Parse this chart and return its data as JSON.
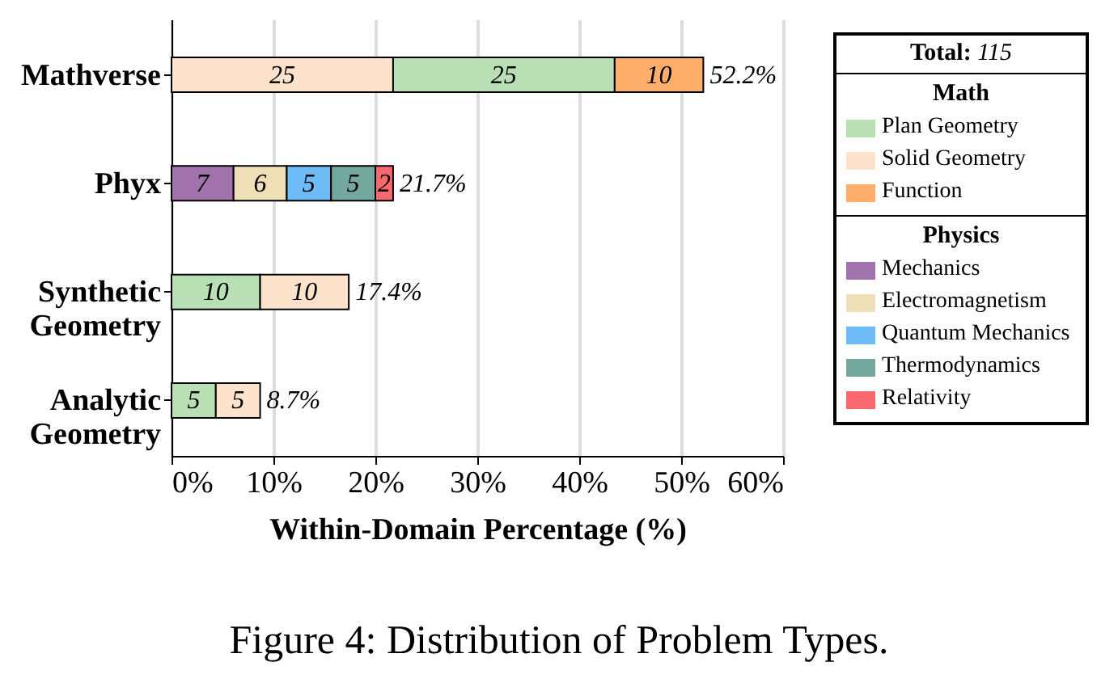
{
  "chart_data": {
    "type": "bar",
    "orientation": "horizontal",
    "stacked": true,
    "title": "Figure 4: Distribution of Problem Types.",
    "xlabel": "Within-Domain Percentage (%)",
    "legend_title": "Total: 115",
    "annotations": [
      "Math",
      "Physics",
      "25",
      "25",
      "10",
      "7",
      "6",
      "5",
      "5",
      "2",
      "10",
      "10",
      "5",
      "5"
    ],
    "categories": [
      "Mathverse",
      "Phyx",
      "Synthetic Geometry",
      "Analytic Geometry"
    ],
    "series": [
      {
        "color": "#fde2cc",
        "values": [
          21.739,
          null,
          null,
          null
        ]
      },
      {
        "name": "Plan Geometry",
        "color": "#b8e0b4",
        "values": [
          21.739,
          null,
          8.696,
          4.348
        ]
      },
      {
        "name": "Solid Geometry",
        "color": "#fde2cc",
        "values": [
          null,
          null,
          8.696,
          4.348
        ]
      },
      {
        "name": "Function",
        "color": "#fdae6b",
        "values": [
          8.696,
          null,
          null,
          null
        ]
      },
      {
        "name": "Mechanics",
        "color": "#a272ac",
        "values": [
          null,
          6.087,
          null,
          null
        ]
      },
      {
        "name": "Electromagnetism",
        "color": "#efe0b8",
        "values": [
          null,
          5.217,
          null,
          null
        ]
      },
      {
        "name": "Quantum Mechanics",
        "color": "#6ebcf7",
        "values": [
          null,
          4.348,
          null,
          null
        ]
      },
      {
        "name": "Thermodynamics",
        "color": "#72a89e",
        "values": [
          null,
          4.348,
          null,
          null
        ]
      },
      {
        "name": "Relativity",
        "color": "#f7696c",
        "values": [
          null,
          1.739,
          null,
          null
        ]
      }
    ],
    "totals": [
      "52.2%",
      "21.7%",
      "17.4%",
      "8.7%"
    ],
    "xlim": [
      0,
      60
    ],
    "xticks": [
      {
        "value": 0,
        "label": "0%"
      },
      {
        "value": 10,
        "label": "10%"
      },
      {
        "value": 20,
        "label": "20%"
      },
      {
        "value": 30,
        "label": "30%"
      },
      {
        "value": 40,
        "label": "40%"
      },
      {
        "value": 50,
        "label": "50%"
      },
      {
        "value": 60,
        "label": "60%"
      }
    ],
    "grid": "x",
    "legend": "right"
  }
}
